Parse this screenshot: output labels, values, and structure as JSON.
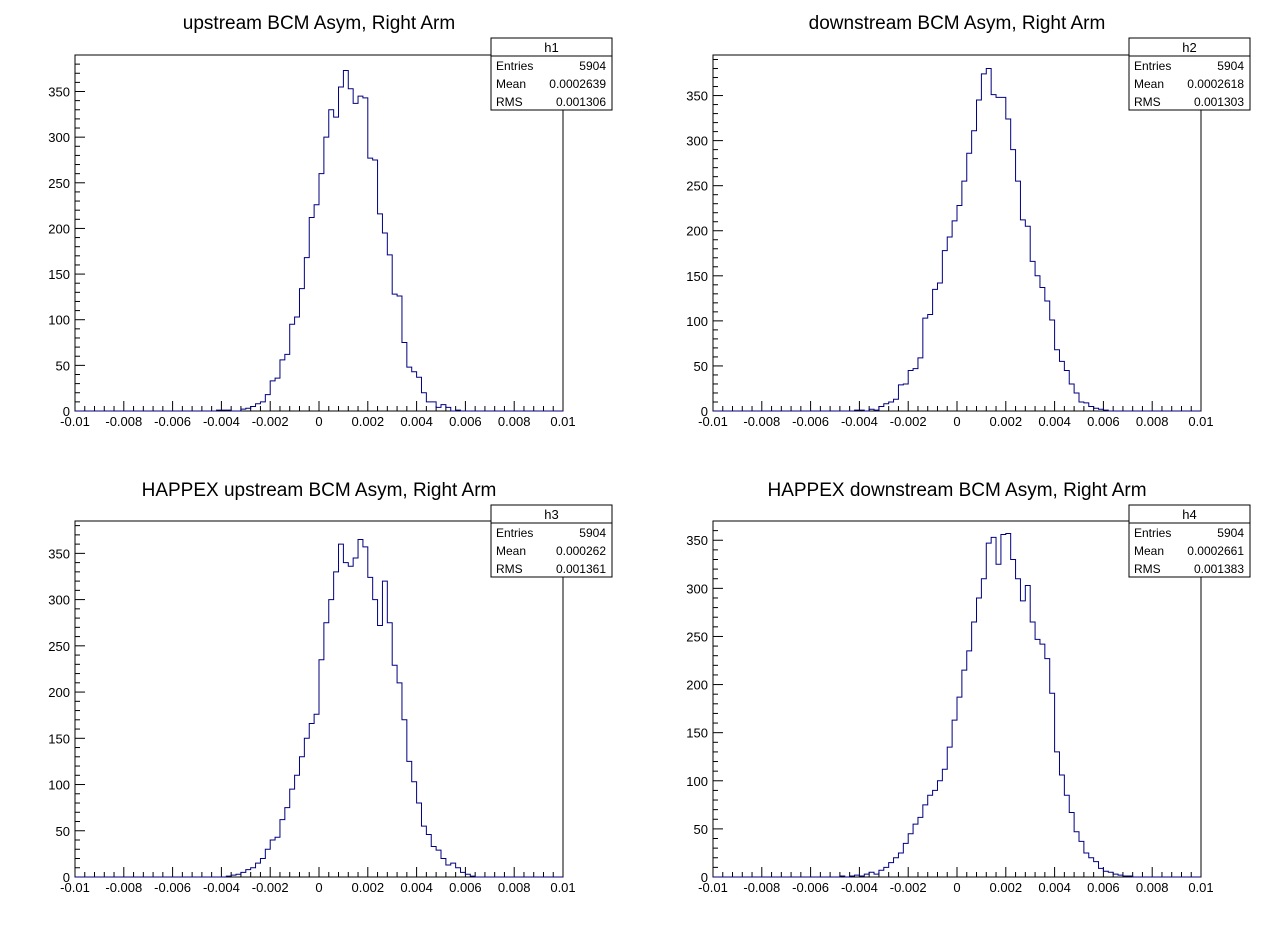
{
  "chart_data": [
    {
      "type": "bar",
      "title": "upstream BCM Asym, Right Arm",
      "xlim": [
        -0.01,
        0.01
      ],
      "ylim": [
        0,
        390
      ],
      "xticks": [
        -0.01,
        -0.008,
        -0.006,
        -0.004,
        -0.002,
        0,
        0.002,
        0.004,
        0.006,
        0.008,
        0.01
      ],
      "xtick_labels": [
        "-0.01",
        "-0.008",
        "-0.006",
        "-0.004",
        "-0.002",
        "0",
        "0.002",
        "0.004",
        "0.006",
        "0.008",
        "0.01"
      ],
      "yticks": [
        0,
        50,
        100,
        150,
        200,
        250,
        300,
        350
      ],
      "ytick_labels": [
        "0",
        "50",
        "100",
        "150",
        "200",
        "250",
        "300",
        "350"
      ],
      "line_color": "#000080",
      "bin_start": -0.01,
      "bin_width": 0.0002,
      "values": [
        0,
        0,
        0,
        0,
        0,
        0,
        0,
        0,
        0,
        0,
        0,
        0,
        0,
        0,
        0,
        0,
        0,
        0,
        0,
        0,
        0,
        0,
        0,
        0,
        0,
        0,
        0,
        0,
        0,
        1,
        1,
        1,
        0,
        0,
        2,
        3,
        5,
        8,
        10,
        18,
        33,
        36,
        56,
        62,
        95,
        103,
        134,
        168,
        212,
        226,
        260,
        300,
        330,
        322,
        355,
        373,
        353,
        337,
        345,
        343,
        277,
        275,
        216,
        195,
        171,
        128,
        126,
        75,
        48,
        43,
        37,
        20,
        10,
        10,
        4,
        7,
        4,
        0,
        1,
        0,
        0,
        0,
        0,
        0,
        0,
        0,
        0,
        0,
        0,
        0,
        0,
        0,
        0,
        0,
        0,
        0,
        0,
        0,
        0,
        0
      ],
      "stats": {
        "name": "h1",
        "rows": [
          {
            "label": "Entries",
            "value": "5904"
          },
          {
            "label": "Mean",
            "value": "0.0002639"
          },
          {
            "label": "RMS",
            "value": "0.001306"
          }
        ]
      }
    },
    {
      "type": "bar",
      "title": "downstream BCM Asym, Right Arm",
      "xlim": [
        -0.01,
        0.01
      ],
      "ylim": [
        0,
        395
      ],
      "xticks": [
        -0.01,
        -0.008,
        -0.006,
        -0.004,
        -0.002,
        0,
        0.002,
        0.004,
        0.006,
        0.008,
        0.01
      ],
      "xtick_labels": [
        "-0.01",
        "-0.008",
        "-0.006",
        "-0.004",
        "-0.002",
        "0",
        "0.002",
        "0.004",
        "0.006",
        "0.008",
        "0.01"
      ],
      "yticks": [
        0,
        50,
        100,
        150,
        200,
        250,
        300,
        350
      ],
      "ytick_labels": [
        "0",
        "50",
        "100",
        "150",
        "200",
        "250",
        "300",
        "350"
      ],
      "line_color": "#000080",
      "bin_start": -0.01,
      "bin_width": 0.0002,
      "values": [
        0,
        0,
        0,
        0,
        0,
        0,
        0,
        0,
        0,
        0,
        0,
        0,
        0,
        0,
        0,
        0,
        0,
        0,
        0,
        0,
        0,
        0,
        0,
        0,
        0,
        0,
        0,
        0,
        0,
        1,
        1,
        0,
        2,
        1,
        5,
        8,
        10,
        13,
        29,
        30,
        45,
        47,
        59,
        103,
        107,
        135,
        142,
        178,
        193,
        211,
        228,
        255,
        286,
        311,
        345,
        374,
        380,
        351,
        348,
        348,
        324,
        290,
        255,
        212,
        205,
        166,
        150,
        137,
        122,
        101,
        68,
        55,
        45,
        30,
        20,
        10,
        9,
        5,
        3,
        2,
        1,
        0,
        0,
        0,
        0,
        0,
        0,
        0,
        0,
        0,
        0,
        0,
        0,
        0,
        0,
        0,
        0,
        0,
        0,
        0
      ],
      "stats": {
        "name": "h2",
        "rows": [
          {
            "label": "Entries",
            "value": "5904"
          },
          {
            "label": "Mean",
            "value": "0.0002618"
          },
          {
            "label": "RMS",
            "value": "0.001303"
          }
        ]
      }
    },
    {
      "type": "bar",
      "title": "HAPPEX upstream BCM Asym, Right Arm",
      "xlim": [
        -0.01,
        0.01
      ],
      "ylim": [
        0,
        385
      ],
      "xticks": [
        -0.01,
        -0.008,
        -0.006,
        -0.004,
        -0.002,
        0,
        0.002,
        0.004,
        0.006,
        0.008,
        0.01
      ],
      "xtick_labels": [
        "-0.01",
        "-0.008",
        "-0.006",
        "-0.004",
        "-0.002",
        "0",
        "0.002",
        "0.004",
        "0.006",
        "0.008",
        "0.01"
      ],
      "yticks": [
        0,
        50,
        100,
        150,
        200,
        250,
        300,
        350
      ],
      "ytick_labels": [
        "0",
        "50",
        "100",
        "150",
        "200",
        "250",
        "300",
        "350"
      ],
      "line_color": "#000080",
      "bin_start": -0.01,
      "bin_width": 0.0002,
      "values": [
        0,
        0,
        0,
        0,
        0,
        0,
        0,
        0,
        0,
        0,
        0,
        0,
        0,
        0,
        0,
        0,
        0,
        0,
        0,
        0,
        0,
        0,
        0,
        0,
        0,
        0,
        0,
        0,
        0,
        0,
        0,
        1,
        2,
        3,
        5,
        8,
        10,
        15,
        20,
        30,
        40,
        43,
        62,
        75,
        95,
        110,
        130,
        150,
        166,
        176,
        235,
        275,
        300,
        330,
        360,
        340,
        336,
        345,
        365,
        357,
        324,
        300,
        272,
        320,
        275,
        229,
        210,
        170,
        125,
        103,
        80,
        55,
        46,
        33,
        29,
        20,
        13,
        15,
        10,
        5,
        3,
        1,
        0,
        0,
        0,
        0,
        0,
        0,
        0,
        0,
        0,
        0,
        0,
        0,
        0,
        0,
        0,
        0,
        0,
        0
      ],
      "stats": {
        "name": "h3",
        "rows": [
          {
            "label": "Entries",
            "value": "5904"
          },
          {
            "label": "Mean",
            "value": "0.000262"
          },
          {
            "label": "RMS",
            "value": "0.001361"
          }
        ]
      }
    },
    {
      "type": "bar",
      "title": "HAPPEX downstream BCM Asym, Right Arm",
      "xlim": [
        -0.01,
        0.01
      ],
      "ylim": [
        0,
        370
      ],
      "xticks": [
        -0.01,
        -0.008,
        -0.006,
        -0.004,
        -0.002,
        0,
        0.002,
        0.004,
        0.006,
        0.008,
        0.01
      ],
      "xtick_labels": [
        "-0.01",
        "-0.008",
        "-0.006",
        "-0.004",
        "-0.002",
        "0",
        "0.002",
        "0.004",
        "0.006",
        "0.008",
        "0.01"
      ],
      "yticks": [
        0,
        50,
        100,
        150,
        200,
        250,
        300,
        350
      ],
      "ytick_labels": [
        "0",
        "50",
        "100",
        "150",
        "200",
        "250",
        "300",
        "350"
      ],
      "line_color": "#000080",
      "bin_start": -0.01,
      "bin_width": 0.0002,
      "values": [
        0,
        0,
        0,
        0,
        0,
        0,
        0,
        0,
        0,
        0,
        0,
        0,
        0,
        0,
        0,
        0,
        0,
        0,
        0,
        0,
        0,
        0,
        0,
        0,
        0,
        0,
        1,
        0,
        1,
        2,
        1,
        3,
        5,
        3,
        7,
        10,
        15,
        20,
        25,
        35,
        45,
        55,
        62,
        75,
        85,
        90,
        100,
        112,
        135,
        163,
        187,
        215,
        235,
        265,
        290,
        310,
        347,
        353,
        325,
        356,
        357,
        330,
        310,
        287,
        303,
        265,
        247,
        242,
        227,
        191,
        130,
        106,
        85,
        67,
        47,
        37,
        25,
        20,
        16,
        9,
        6,
        5,
        3,
        2,
        1,
        1,
        0,
        0,
        0,
        0,
        0,
        0,
        0,
        0,
        0,
        0,
        0,
        0,
        0,
        0
      ],
      "stats": {
        "name": "h4",
        "rows": [
          {
            "label": "Entries",
            "value": "5904"
          },
          {
            "label": "Mean",
            "value": "0.0002661"
          },
          {
            "label": "RMS",
            "value": "0.001383"
          }
        ]
      }
    }
  ]
}
